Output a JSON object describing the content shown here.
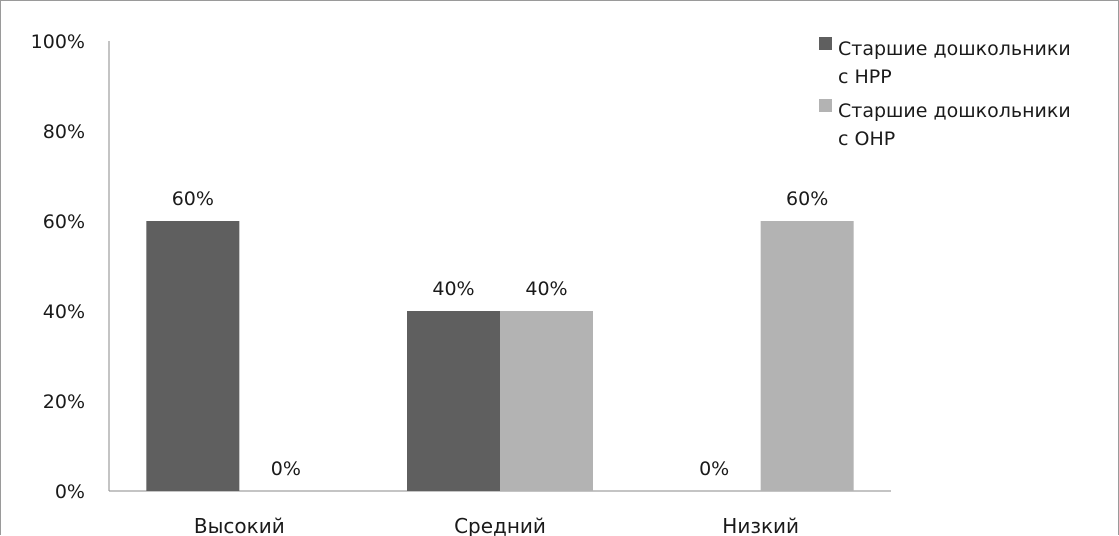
{
  "chart_data": {
    "type": "bar",
    "categories": [
      "Высокий",
      "Средний",
      "Низкий"
    ],
    "series": [
      {
        "name": "Старшие дошкольники с НРР",
        "legend_lines": [
          "Старшие дошкольники",
          "с НРР"
        ],
        "color": "#5f5f5f",
        "values": [
          60,
          40,
          0
        ],
        "labels": [
          "60%",
          "40%",
          "0%"
        ]
      },
      {
        "name": "Старшие дошкольники с ОНР",
        "legend_lines": [
          "Старшие дошкольники",
          "с ОНР"
        ],
        "color": "#b3b3b3",
        "values": [
          0,
          40,
          60
        ],
        "labels": [
          "0%",
          "40%",
          "60%"
        ]
      }
    ],
    "y_ticks": [
      {
        "value": 0,
        "label": "0%"
      },
      {
        "value": 20,
        "label": "20%"
      },
      {
        "value": 40,
        "label": "40%"
      },
      {
        "value": 60,
        "label": "60%"
      },
      {
        "value": 80,
        "label": "80%"
      },
      {
        "value": 100,
        "label": "100%"
      }
    ],
    "ylim": [
      0,
      100
    ],
    "title": "",
    "xlabel": "",
    "ylabel": "",
    "grid": false,
    "legend_position": "top-right"
  }
}
